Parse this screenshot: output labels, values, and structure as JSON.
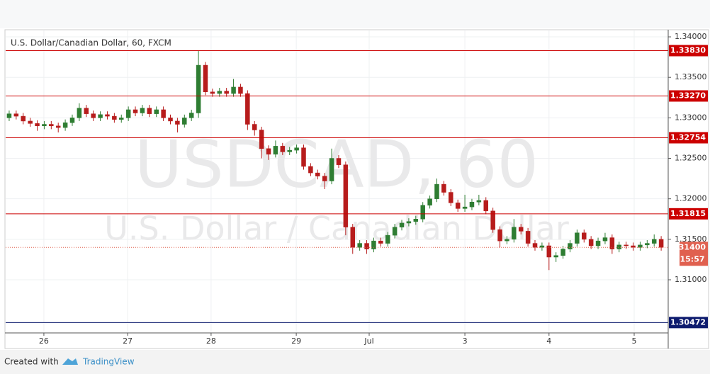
{
  "chart_data": {
    "type": "candlestick",
    "title": "U.S. Dollar/Canadian Dollar, 60, FXCM",
    "watermark": {
      "symbol": "USDCAD, 60",
      "name": "U.S. Dollar / Canadian Dollar"
    },
    "x": [
      1,
      3,
      5,
      7,
      9,
      11,
      13,
      15,
      17,
      19,
      21,
      23,
      25,
      27,
      29,
      31,
      33,
      35,
      37,
      39,
      41,
      43,
      45,
      47,
      49,
      51,
      53,
      55,
      57,
      59,
      61,
      63,
      65,
      67,
      69,
      71,
      73,
      75,
      77,
      79,
      81,
      83,
      85,
      87,
      89,
      91,
      93,
      95,
      97,
      99,
      101,
      103,
      105,
      107,
      109,
      111,
      113,
      115,
      117,
      119,
      121,
      123,
      125,
      127,
      129,
      131,
      133,
      135,
      137,
      139,
      141,
      143,
      145,
      147,
      149,
      151,
      153,
      155,
      157,
      159,
      161,
      163,
      165,
      167,
      169,
      171,
      173,
      175,
      177,
      179,
      181,
      183,
      185,
      187
    ],
    "open": [
      1.33,
      1.3305,
      1.3302,
      1.3296,
      1.3293,
      1.329,
      1.3292,
      1.329,
      1.3288,
      1.3294,
      1.33,
      1.3312,
      1.3305,
      1.33,
      1.3304,
      1.3302,
      1.3298,
      1.33,
      1.331,
      1.3306,
      1.3312,
      1.3305,
      1.331,
      1.33,
      1.3296,
      1.3292,
      1.33,
      1.3306,
      1.3365,
      1.3332,
      1.333,
      1.3333,
      1.333,
      1.3338,
      1.333,
      1.3292,
      1.3285,
      1.3262,
      1.3255,
      1.3265,
      1.3258,
      1.326,
      1.3263,
      1.324,
      1.3232,
      1.3228,
      1.3222,
      1.325,
      1.3242,
      1.3165,
      1.314,
      1.3145,
      1.3138,
      1.3148,
      1.3145,
      1.3155,
      1.3165,
      1.317,
      1.3172,
      1.3175,
      1.3192,
      1.32,
      1.3218,
      1.3208,
      1.3195,
      1.3188,
      1.319,
      1.3196,
      1.3198,
      1.3185,
      1.3162,
      1.3148,
      1.315,
      1.3165,
      1.316,
      1.3145,
      1.314,
      1.3142,
      1.3128,
      1.313,
      1.3138,
      1.3145,
      1.3158,
      1.315,
      1.3142,
      1.3148,
      1.3152,
      1.3138,
      1.3143,
      1.3142,
      1.314,
      1.3143,
      1.3145,
      1.315
    ],
    "high": [
      1.3309,
      1.3309,
      1.3306,
      1.33,
      1.3297,
      1.3296,
      1.3296,
      1.3294,
      1.3298,
      1.3304,
      1.3318,
      1.3316,
      1.3309,
      1.3308,
      1.3308,
      1.3306,
      1.3304,
      1.3314,
      1.3314,
      1.3316,
      1.3316,
      1.3314,
      1.3314,
      1.3304,
      1.33,
      1.3304,
      1.331,
      1.3383,
      1.3369,
      1.3336,
      1.3337,
      1.3337,
      1.3348,
      1.3342,
      1.3334,
      1.3296,
      1.3289,
      1.3266,
      1.3272,
      1.3269,
      1.3264,
      1.3267,
      1.3267,
      1.3244,
      1.3236,
      1.3232,
      1.3262,
      1.3254,
      1.3246,
      1.3169,
      1.3149,
      1.3149,
      1.3152,
      1.3152,
      1.3159,
      1.3169,
      1.3174,
      1.3176,
      1.3179,
      1.3196,
      1.3204,
      1.3225,
      1.3222,
      1.3212,
      1.3199,
      1.3205,
      1.32,
      1.3205,
      1.3202,
      1.3189,
      1.3166,
      1.3154,
      1.3175,
      1.3169,
      1.3164,
      1.3149,
      1.3146,
      1.3146,
      1.3134,
      1.3142,
      1.3149,
      1.3162,
      1.3162,
      1.3154,
      1.3152,
      1.3158,
      1.3156,
      1.3147,
      1.3147,
      1.3146,
      1.3147,
      1.3149,
      1.3156,
      1.3154
    ],
    "low": [
      1.3296,
      1.3298,
      1.3292,
      1.3289,
      1.3284,
      1.3286,
      1.3286,
      1.3282,
      1.3284,
      1.329,
      1.3296,
      1.3301,
      1.3296,
      1.3296,
      1.3298,
      1.3294,
      1.3294,
      1.3296,
      1.3302,
      1.3302,
      1.3301,
      1.3301,
      1.3296,
      1.3292,
      1.3282,
      1.3288,
      1.3296,
      1.33,
      1.3328,
      1.3326,
      1.3326,
      1.3326,
      1.3326,
      1.3326,
      1.3285,
      1.3278,
      1.325,
      1.3248,
      1.3251,
      1.3254,
      1.3254,
      1.3256,
      1.3236,
      1.3228,
      1.3224,
      1.3212,
      1.3218,
      1.3238,
      1.3155,
      1.3132,
      1.3136,
      1.3132,
      1.3134,
      1.3141,
      1.3141,
      1.3151,
      1.3161,
      1.3166,
      1.3168,
      1.3171,
      1.3188,
      1.3196,
      1.3204,
      1.3191,
      1.3184,
      1.3184,
      1.3186,
      1.3192,
      1.3181,
      1.3158,
      1.314,
      1.3144,
      1.3146,
      1.3156,
      1.3141,
      1.3136,
      1.3136,
      1.3112,
      1.3122,
      1.3126,
      1.3134,
      1.3141,
      1.3146,
      1.3138,
      1.3138,
      1.3144,
      1.3132,
      1.3134,
      1.3138,
      1.3136,
      1.3136,
      1.3139,
      1.3141,
      1.3136
    ],
    "close": [
      1.3305,
      1.3302,
      1.3296,
      1.3293,
      1.329,
      1.3292,
      1.329,
      1.3288,
      1.3294,
      1.33,
      1.3312,
      1.3305,
      1.33,
      1.3304,
      1.3302,
      1.3298,
      1.33,
      1.331,
      1.3306,
      1.3312,
      1.3305,
      1.331,
      1.33,
      1.3296,
      1.3292,
      1.33,
      1.3306,
      1.3365,
      1.3332,
      1.333,
      1.3333,
      1.333,
      1.3338,
      1.333,
      1.3292,
      1.3285,
      1.3262,
      1.3255,
      1.3265,
      1.3258,
      1.326,
      1.3263,
      1.324,
      1.3232,
      1.3228,
      1.3222,
      1.325,
      1.3242,
      1.3165,
      1.314,
      1.3145,
      1.3138,
      1.3148,
      1.3145,
      1.3155,
      1.3165,
      1.317,
      1.3172,
      1.3175,
      1.3192,
      1.32,
      1.3218,
      1.3208,
      1.3195,
      1.3188,
      1.319,
      1.3196,
      1.3198,
      1.3185,
      1.3162,
      1.3148,
      1.315,
      1.3165,
      1.316,
      1.3145,
      1.314,
      1.3142,
      1.3128,
      1.313,
      1.3138,
      1.3145,
      1.3158,
      1.315,
      1.3142,
      1.3148,
      1.3152,
      1.3138,
      1.3143,
      1.3142,
      1.314,
      1.3143,
      1.3145,
      1.315,
      1.314
    ],
    "up_color": "#2e7d32",
    "down_color": "#b71c1c",
    "xlim": [
      0,
      189
    ],
    "xticks": [
      {
        "value": 10.9,
        "label": "26"
      },
      {
        "value": 34.8,
        "label": "27"
      },
      {
        "value": 58.6,
        "label": "28"
      },
      {
        "value": 82.9,
        "label": "29"
      },
      {
        "value": 103.7,
        "label": "Jul"
      },
      {
        "value": 131,
        "label": "3"
      },
      {
        "value": 155,
        "label": "4"
      },
      {
        "value": 179.3,
        "label": "5"
      }
    ],
    "ylim": [
      1.30344,
      1.34079
    ],
    "yticks": [
      {
        "value": 1.34,
        "label": "1.34000"
      },
      {
        "value": 1.335,
        "label": "1.33500"
      },
      {
        "value": 1.33,
        "label": "1.33000"
      },
      {
        "value": 1.325,
        "label": "1.32500"
      },
      {
        "value": 1.32,
        "label": "1.32000"
      },
      {
        "value": 1.315,
        "label": "1.31500"
      },
      {
        "value": 1.31,
        "label": "1.31000"
      }
    ],
    "grid": true,
    "levels": [
      {
        "value": 1.3383,
        "label": "1.33830",
        "color": "#cc0000"
      },
      {
        "value": 1.3327,
        "label": "1.33270",
        "color": "#cc0000"
      },
      {
        "value": 1.32754,
        "label": "1.32754",
        "color": "#cc0000"
      },
      {
        "value": 1.31815,
        "label": "1.31815",
        "color": "#cc0000"
      },
      {
        "value": 1.30472,
        "label": "1.30472",
        "color": "#0d1b6e"
      }
    ],
    "current": {
      "value": 1.314,
      "label": "1.31400",
      "countdown": "15:57",
      "color": "#e0604f"
    },
    "footer": {
      "created": "Created with",
      "brand": "TradingView"
    }
  }
}
